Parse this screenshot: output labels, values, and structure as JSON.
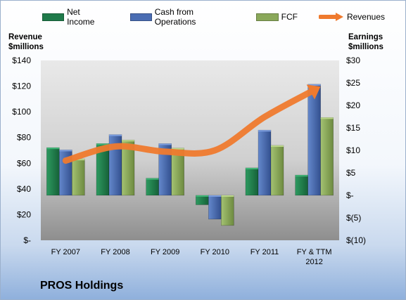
{
  "company": "PROS Holdings",
  "left_axis_title": [
    "Revenue",
    "$millions"
  ],
  "right_axis_title": [
    "Earnings",
    "$millions"
  ],
  "colors": {
    "net_income": "#1f7a4a",
    "cash_from_operations": "#4a6db3",
    "fcf": "#8aa85a",
    "revenues": "#ef7a2e"
  },
  "chart_data": {
    "type": "bar",
    "categories": [
      "FY 2007",
      "FY 2008",
      "FY 2009",
      "FY 2010",
      "FY 2011",
      "FY & TTM 2012"
    ],
    "series": [
      {
        "name": "Net Income",
        "axis": "right",
        "values": [
          10.6,
          11.5,
          3.8,
          -2.1,
          6.1,
          4.5
        ]
      },
      {
        "name": "Cash from Operations",
        "axis": "right",
        "values": [
          10.1,
          13.5,
          11.5,
          -5.3,
          14.5,
          24.7
        ]
      },
      {
        "name": "FCF",
        "axis": "right",
        "values": [
          8.1,
          12.3,
          10.5,
          -6.7,
          11.1,
          17.3
        ]
      },
      {
        "name": "Revenues",
        "axis": "left",
        "type": "line",
        "values": [
          62,
          73,
          69,
          70,
          96,
          117
        ]
      }
    ],
    "left_axis": {
      "title": "Revenue $millions",
      "ylim": [
        0,
        140
      ],
      "ticks": [
        "$-",
        "$20",
        "$40",
        "$60",
        "$80",
        "$100",
        "$120",
        "$140"
      ]
    },
    "right_axis": {
      "title": "Earnings $millions",
      "ylim": [
        -10,
        30
      ],
      "ticks": [
        "$(10)",
        "$(5)",
        "$-",
        "$5",
        "$10",
        "$15",
        "$20",
        "$25",
        "$30"
      ]
    },
    "legend_position": "top",
    "grid": false
  }
}
